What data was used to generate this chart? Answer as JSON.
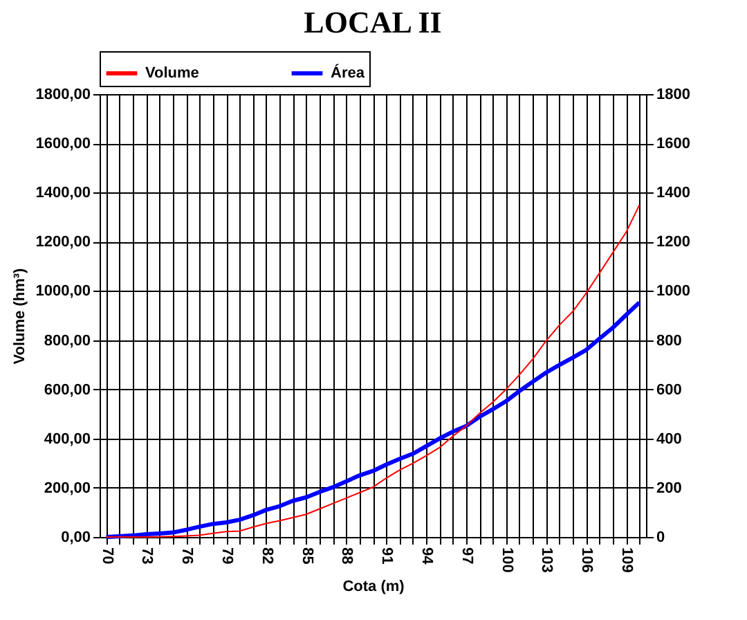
{
  "chart_data": {
    "type": "line",
    "title": "LOCAL II",
    "xlabel": "Cota (m)",
    "ylabel": "Volume (hm³)",
    "x": [
      70,
      71,
      72,
      73,
      74,
      75,
      76,
      77,
      78,
      79,
      80,
      81,
      82,
      83,
      84,
      85,
      86,
      87,
      88,
      89,
      90,
      91,
      92,
      93,
      94,
      95,
      96,
      97,
      98,
      99,
      100,
      101,
      102,
      103,
      104,
      105,
      106,
      107,
      108,
      109,
      110
    ],
    "series": [
      {
        "name": "Volume",
        "color": "#ff0000",
        "values": [
          0,
          0,
          0,
          0,
          1,
          2,
          4,
          7,
          15,
          22,
          24,
          40,
          55,
          66,
          79,
          92,
          114,
          136,
          158,
          180,
          202,
          239,
          272,
          299,
          330,
          363,
          409,
          451,
          502,
          548,
          600,
          659,
          723,
          797,
          861,
          916,
          990,
          1072,
          1155,
          1238,
          1349
        ]
      },
      {
        "name": "Área",
        "color": "#0000ff",
        "axis": "y2",
        "values": [
          0,
          3,
          6,
          11,
          14,
          18,
          29,
          42,
          53,
          59,
          70,
          88,
          110,
          125,
          147,
          161,
          183,
          202,
          226,
          250,
          268,
          294,
          317,
          338,
          369,
          400,
          428,
          451,
          488,
          519,
          552,
          593,
          631,
          668,
          699,
          729,
          760,
          806,
          850,
          902,
          953
        ]
      }
    ],
    "xlim": [
      69.5,
      110.5
    ],
    "xticks": [
      70,
      {
        "value": 71,
        "label": null
      },
      {
        "value": 72,
        "label": null
      },
      73,
      {
        "value": 74,
        "label": null
      },
      {
        "value": 75,
        "label": null
      },
      76,
      {
        "value": 77,
        "label": null
      },
      {
        "value": 78,
        "label": null
      },
      79,
      {
        "value": 80,
        "label": null
      },
      {
        "value": 81,
        "label": null
      },
      82,
      {
        "value": 83,
        "label": null
      },
      {
        "value": 84,
        "label": null
      },
      85,
      {
        "value": 86,
        "label": null
      },
      {
        "value": 87,
        "label": null
      },
      88,
      {
        "value": 89,
        "label": null
      },
      {
        "value": 90,
        "label": null
      },
      91,
      {
        "value": 92,
        "label": null
      },
      {
        "value": 93,
        "label": null
      },
      94,
      {
        "value": 95,
        "label": null
      },
      {
        "value": 96,
        "label": null
      },
      97,
      {
        "value": 98,
        "label": null
      },
      {
        "value": 99,
        "label": null
      },
      100,
      {
        "value": 101,
        "label": null
      },
      {
        "value": 102,
        "label": null
      },
      103,
      {
        "value": 104,
        "label": null
      },
      {
        "value": 105,
        "label": null
      },
      106,
      {
        "value": 107,
        "label": null
      },
      {
        "value": 108,
        "label": null
      },
      109,
      {
        "value": 110,
        "label": null
      }
    ],
    "ylim": [
      0,
      1800
    ],
    "yticks": [
      {
        "value": 0,
        "label": "0,00"
      },
      {
        "value": 200,
        "label": "200,00"
      },
      {
        "value": 400,
        "label": "400,00"
      },
      {
        "value": 600,
        "label": "600,00"
      },
      {
        "value": 800,
        "label": "800,00"
      },
      {
        "value": 1000,
        "label": "1000,00"
      },
      {
        "value": 1200,
        "label": "1200,00"
      },
      {
        "value": 1400,
        "label": "1400,00"
      },
      {
        "value": 1600,
        "label": "1600,00"
      },
      {
        "value": 1800,
        "label": "1800,00"
      }
    ],
    "y2lim": [
      0,
      1800
    ],
    "y2ticks": [
      0,
      200,
      400,
      600,
      800,
      1000,
      1200,
      1400,
      1600,
      1800
    ],
    "grid": true,
    "legend": "top",
    "marker": "none",
    "line_style": "solid"
  }
}
